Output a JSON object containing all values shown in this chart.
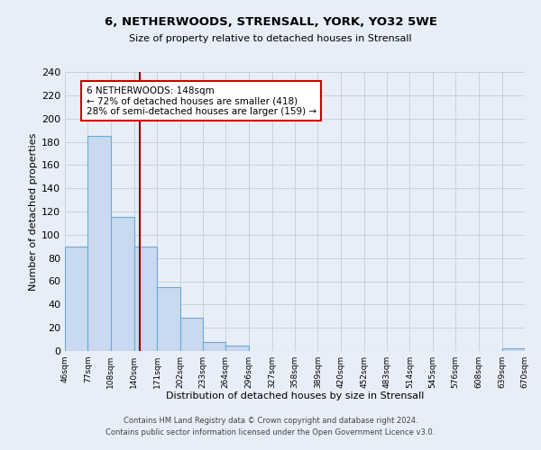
{
  "title": "6, NETHERWOODS, STRENSALL, YORK, YO32 5WE",
  "subtitle": "Size of property relative to detached houses in Strensall",
  "xlabel": "Distribution of detached houses by size in Strensall",
  "ylabel": "Number of detached properties",
  "bar_edges": [
    46,
    77,
    108,
    140,
    171,
    202,
    233,
    264,
    296,
    327,
    358,
    389,
    420,
    452,
    483,
    514,
    545,
    576,
    608,
    639,
    670
  ],
  "bar_heights": [
    90,
    185,
    115,
    90,
    55,
    29,
    8,
    5,
    0,
    0,
    0,
    0,
    0,
    0,
    0,
    0,
    0,
    0,
    0,
    2
  ],
  "bar_color": "#c9d9f0",
  "bar_edgecolor": "#6aaad4",
  "property_line_x": 148,
  "property_line_color": "#8b0000",
  "ylim": [
    0,
    240
  ],
  "annotation_text": "6 NETHERWOODS: 148sqm\n← 72% of detached houses are smaller (418)\n28% of semi-detached houses are larger (159) →",
  "annotation_box_edgecolor": "#cc0000",
  "annotation_box_facecolor": "white",
  "footer_line1": "Contains HM Land Registry data © Crown copyright and database right 2024.",
  "footer_line2": "Contains public sector information licensed under the Open Government Licence v3.0.",
  "tick_labels": [
    "46sqm",
    "77sqm",
    "108sqm",
    "140sqm",
    "171sqm",
    "202sqm",
    "233sqm",
    "264sqm",
    "296sqm",
    "327sqm",
    "358sqm",
    "389sqm",
    "420sqm",
    "452sqm",
    "483sqm",
    "514sqm",
    "545sqm",
    "576sqm",
    "608sqm",
    "639sqm",
    "670sqm"
  ],
  "background_color": "#e8eef8",
  "grid_color": "#c8d0e0",
  "yticks": [
    0,
    20,
    40,
    60,
    80,
    100,
    120,
    140,
    160,
    180,
    200,
    220,
    240
  ]
}
